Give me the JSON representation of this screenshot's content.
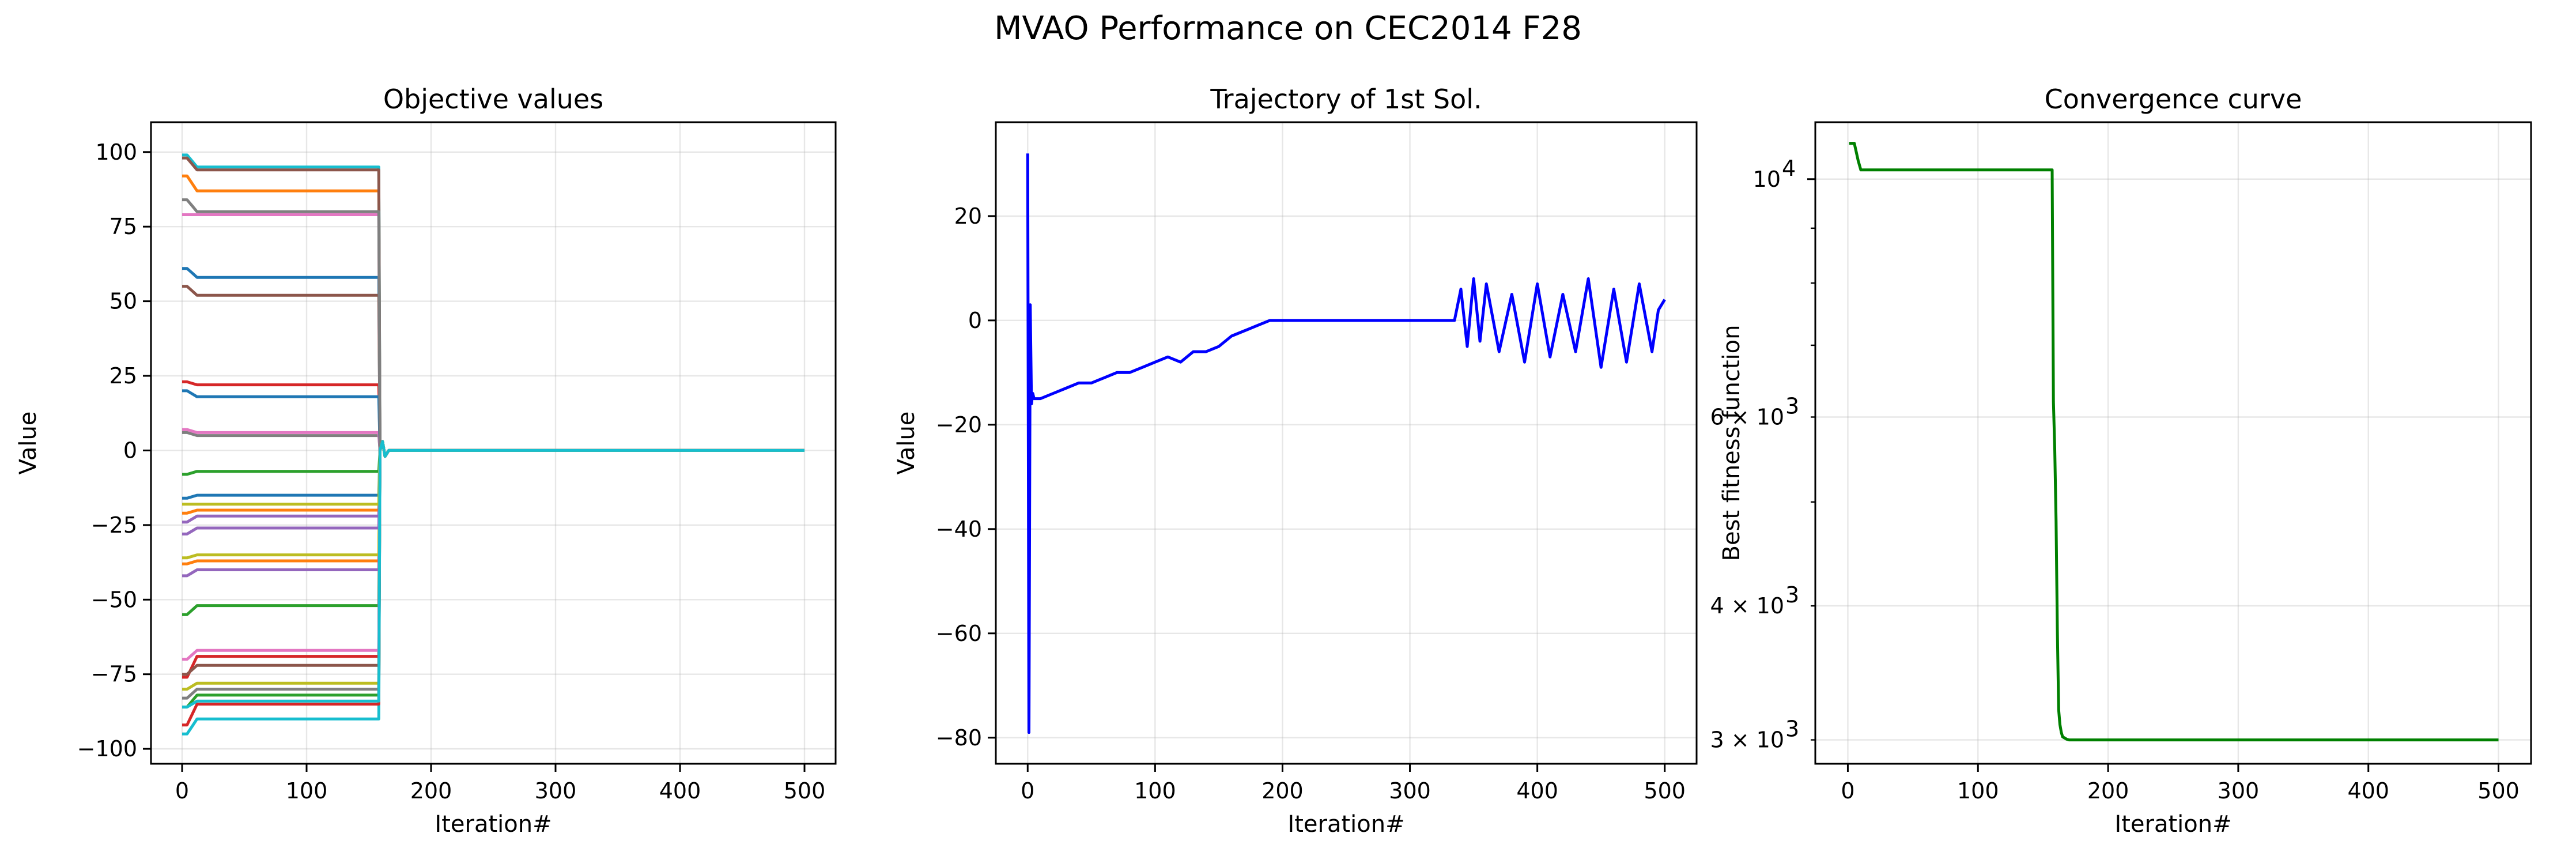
{
  "suptitle": "MVAO Performance on CEC2014 F28",
  "colors": {
    "palette": [
      "#1f77b4",
      "#ff7f0e",
      "#2ca02c",
      "#d62728",
      "#9467bd",
      "#8c564b",
      "#e377c2",
      "#7f7f7f",
      "#bcbd22",
      "#17becf"
    ],
    "trajectory": "#0000ff",
    "convergence": "#008000"
  },
  "chart_data": [
    {
      "type": "line",
      "title": "Objective values",
      "xlabel": "Iteration#",
      "ylabel": "Value",
      "xlim": [
        -25,
        525
      ],
      "ylim": [
        -105,
        110
      ],
      "xticks": [
        0,
        100,
        200,
        300,
        400,
        500
      ],
      "xtick_labels": [
        "0",
        "100",
        "200",
        "300",
        "400",
        "500"
      ],
      "yticks": [
        -100,
        -75,
        -50,
        -25,
        0,
        25,
        50,
        75,
        100
      ],
      "ytick_labels": [
        "−100",
        "−75",
        "−50",
        "−25",
        "0",
        "25",
        "50",
        "75",
        "100"
      ],
      "grid": true,
      "collapse_iteration": 158,
      "final_value": 0,
      "series": [
        {
          "start": 61,
          "plateau": 58
        },
        {
          "start": 92,
          "plateau": 87
        },
        {
          "start": -55,
          "plateau": -52
        },
        {
          "start": 23,
          "plateau": 22
        },
        {
          "start": -24,
          "plateau": -22
        },
        {
          "start": 55,
          "plateau": 52
        },
        {
          "start": 79,
          "plateau": 79
        },
        {
          "start": 6,
          "plateau": 5
        },
        {
          "start": -80,
          "plateau": -78
        },
        {
          "start": 99,
          "plateau": 95
        },
        {
          "start": -16,
          "plateau": -15
        },
        {
          "start": -38,
          "plateau": -37
        },
        {
          "start": -8,
          "plateau": -7
        },
        {
          "start": -76,
          "plateau": -69
        },
        {
          "start": -42,
          "plateau": -40
        },
        {
          "start": -75,
          "plateau": -72
        },
        {
          "start": 7,
          "plateau": 6
        },
        {
          "start": -83,
          "plateau": -80
        },
        {
          "start": -36,
          "plateau": -35
        },
        {
          "start": -95,
          "plateau": -90
        },
        {
          "start": 20,
          "plateau": 18
        },
        {
          "start": -21,
          "plateau": -20
        },
        {
          "start": -86,
          "plateau": -82
        },
        {
          "start": -92,
          "plateau": -85
        },
        {
          "start": -28,
          "plateau": -26
        },
        {
          "start": 98,
          "plateau": 94
        },
        {
          "start": -70,
          "plateau": -67
        },
        {
          "start": 84,
          "plateau": 80
        },
        {
          "start": -18,
          "plateau": -18
        },
        {
          "start": -86,
          "plateau": -84
        }
      ]
    },
    {
      "type": "line",
      "title": "Trajectory of 1st Sol.",
      "xlabel": "Iteration#",
      "ylabel": "Value",
      "xlim": [
        -25,
        525
      ],
      "ylim": [
        -85,
        38
      ],
      "xticks": [
        0,
        100,
        200,
        300,
        400,
        500
      ],
      "xtick_labels": [
        "0",
        "100",
        "200",
        "300",
        "400",
        "500"
      ],
      "yticks": [
        -80,
        -60,
        -40,
        -20,
        0,
        20
      ],
      "ytick_labels": [
        "−80",
        "−60",
        "−40",
        "−20",
        "0",
        "20"
      ],
      "grid": true,
      "x": [
        0,
        1,
        2,
        3,
        4,
        5,
        10,
        20,
        30,
        40,
        50,
        60,
        70,
        80,
        90,
        100,
        110,
        120,
        130,
        140,
        150,
        155,
        160,
        170,
        180,
        190,
        200,
        220,
        240,
        260,
        280,
        300,
        320,
        335,
        340,
        345,
        350,
        355,
        360,
        370,
        380,
        390,
        400,
        410,
        420,
        430,
        440,
        450,
        460,
        470,
        480,
        490,
        495,
        500
      ],
      "y": [
        32,
        -79,
        3,
        -16,
        -14,
        -15,
        -15,
        -14,
        -13,
        -12,
        -12,
        -11,
        -10,
        -10,
        -9,
        -8,
        -7,
        -8,
        -6,
        -6,
        -5,
        -4,
        -3,
        -2,
        -1,
        0,
        0,
        0,
        0,
        0,
        0,
        0,
        0,
        0,
        6,
        -5,
        8,
        -4,
        7,
        -6,
        5,
        -8,
        7,
        -7,
        5,
        -6,
        8,
        -9,
        6,
        -8,
        7,
        -6,
        2,
        4
      ]
    },
    {
      "type": "line",
      "title": "Convergence curve",
      "xlabel": "Iteration#",
      "ylabel": "Best fitness function",
      "log_y": true,
      "xlim": [
        -25,
        525
      ],
      "ylim": [
        2850,
        11300
      ],
      "xticks": [
        0,
        100,
        200,
        300,
        400,
        500
      ],
      "xtick_labels": [
        "0",
        "100",
        "200",
        "300",
        "400",
        "500"
      ],
      "yticks_major": [
        10000
      ],
      "ytick_major_labels": [
        "10",
        "4"
      ],
      "yticks_minor": [
        3000,
        4000,
        6000
      ],
      "ytick_minor_labels": [
        "3 × 10",
        "4 × 10",
        "6 × 10"
      ],
      "ytick_minor_exponent": "3",
      "grid": true,
      "x": [
        1,
        5,
        8,
        10,
        20,
        50,
        100,
        150,
        157,
        158,
        159,
        160,
        161,
        162,
        163,
        164,
        165,
        168,
        170,
        200,
        300,
        400,
        500
      ],
      "y": [
        10800,
        10800,
        10400,
        10200,
        10200,
        10200,
        10200,
        10200,
        10200,
        6200,
        5600,
        4800,
        3800,
        3200,
        3100,
        3050,
        3020,
        3005,
        3000,
        3000,
        3000,
        3000,
        3000
      ]
    }
  ]
}
